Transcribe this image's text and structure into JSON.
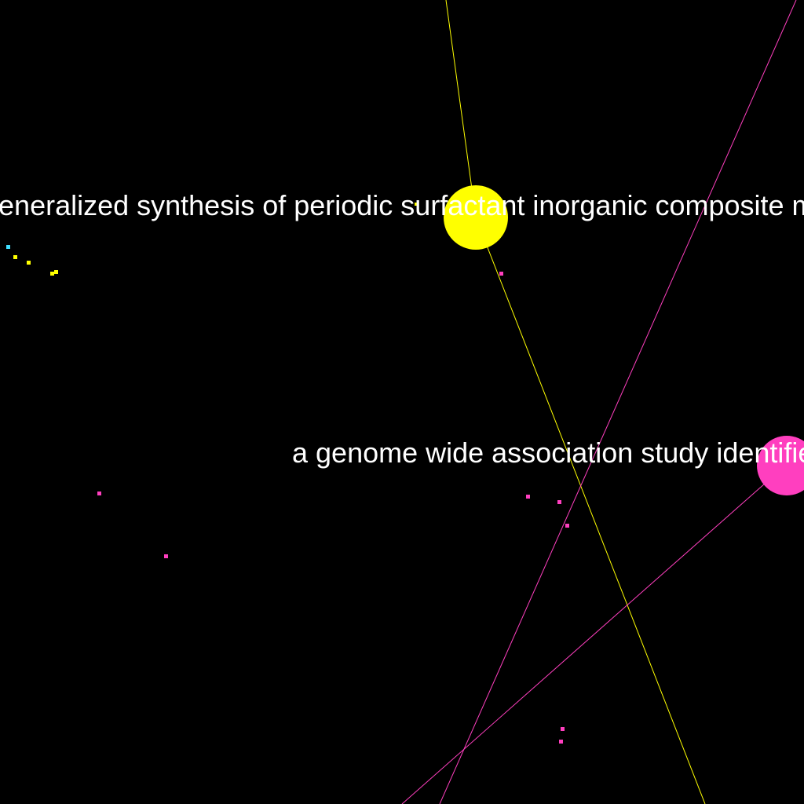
{
  "colors": {
    "background": "#000000",
    "label": "#ffffff",
    "yellow": "#ffff00",
    "pink": "#ff3fbf",
    "cyan": "#3fdfff"
  },
  "labels": {
    "paper_a": "generalized synthesis of periodic surfactant inorganic composite materials",
    "paper_b": "a genome wide association study identifies"
  }
}
